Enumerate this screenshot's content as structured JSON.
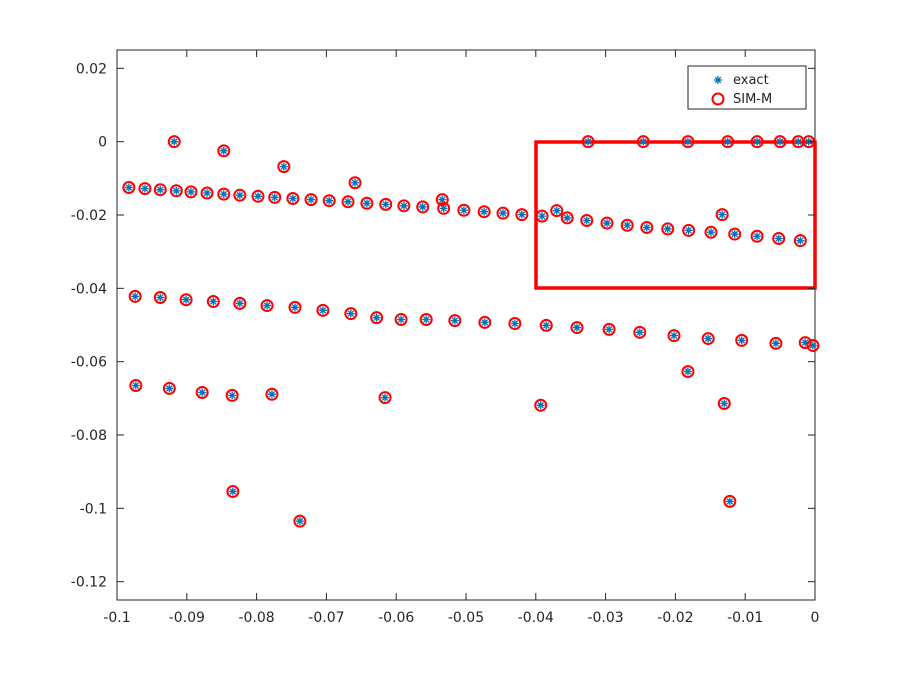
{
  "chart_data": {
    "type": "scatter",
    "x": [
      -0.0983,
      -0.096,
      -0.0938,
      -0.0915,
      -0.0894,
      -0.0871,
      -0.0847,
      -0.0824,
      -0.0798,
      -0.0774,
      -0.0748,
      -0.0722,
      -0.0696,
      -0.0669,
      -0.0642,
      -0.0615,
      -0.0589,
      -0.0562,
      -0.0532,
      -0.0503,
      -0.0474,
      -0.0447,
      -0.042,
      -0.0391,
      -0.0355,
      -0.0327,
      -0.0298,
      -0.0269,
      -0.0241,
      -0.0211,
      -0.0181,
      -0.0149,
      -0.0115,
      -0.0083,
      -0.0052,
      -0.0021,
      -0.0918,
      -0.0847,
      -0.0761,
      -0.0659,
      -0.0534,
      -0.037,
      -0.0133,
      -0.0325,
      -0.0246,
      -0.0182,
      -0.0125,
      -0.0083,
      -0.005,
      -0.0024,
      -0.0009,
      -0.0974,
      -0.0938,
      -0.0901,
      -0.0862,
      -0.0824,
      -0.0785,
      -0.0745,
      -0.0705,
      -0.0665,
      -0.0628,
      -0.0593,
      -0.0557,
      -0.0516,
      -0.0473,
      -0.043,
      -0.0385,
      -0.0341,
      -0.0295,
      -0.0251,
      -0.0202,
      -0.0153,
      -0.0105,
      -0.0056,
      -0.0014,
      -0.0003,
      -0.0182,
      -0.013,
      -0.0122,
      -0.0973,
      -0.0925,
      -0.0878,
      -0.0835,
      -0.0778,
      -0.0616,
      -0.0393,
      -0.0834,
      -0.0738
    ],
    "series": [
      {
        "name": "exact",
        "color": "#0072bd",
        "marker": "asterisk",
        "values": [
          -0.0125,
          -0.0128,
          -0.0131,
          -0.0134,
          -0.0137,
          -0.014,
          -0.0143,
          -0.0146,
          -0.0149,
          -0.0152,
          -0.0155,
          -0.0158,
          -0.0161,
          -0.0164,
          -0.0168,
          -0.0171,
          -0.0175,
          -0.0178,
          -0.0182,
          -0.0187,
          -0.0191,
          -0.0195,
          -0.0199,
          -0.0203,
          -0.0208,
          -0.0215,
          -0.0222,
          -0.0228,
          -0.0234,
          -0.0238,
          -0.0242,
          -0.0247,
          -0.0252,
          -0.0258,
          -0.0264,
          -0.027,
          0,
          -0.0025,
          -0.0068,
          -0.0112,
          -0.0158,
          -0.0188,
          -0.0199,
          0,
          0,
          0,
          0,
          0,
          0,
          0,
          0,
          -0.0422,
          -0.0425,
          -0.0431,
          -0.0436,
          -0.0441,
          -0.0447,
          -0.0452,
          -0.046,
          -0.0469,
          -0.048,
          -0.0485,
          -0.0485,
          -0.0488,
          -0.0493,
          -0.0496,
          -0.0501,
          -0.0507,
          -0.0512,
          -0.052,
          -0.0529,
          -0.0537,
          -0.0542,
          -0.055,
          -0.0548,
          -0.0556,
          -0.0627,
          -0.0714,
          -0.0981,
          -0.0665,
          -0.0673,
          -0.0684,
          -0.0692,
          -0.0689,
          -0.0698,
          -0.0719,
          -0.0954,
          -0.1035
        ]
      },
      {
        "name": "SIM-M",
        "color": "#ff0000",
        "marker": "circle",
        "values": [
          -0.0125,
          -0.0128,
          -0.0131,
          -0.0134,
          -0.0137,
          -0.014,
          -0.0143,
          -0.0146,
          -0.0149,
          -0.0152,
          -0.0155,
          -0.0158,
          -0.0161,
          -0.0164,
          -0.0168,
          -0.0171,
          -0.0175,
          -0.0178,
          -0.0182,
          -0.0187,
          -0.0191,
          -0.0195,
          -0.0199,
          -0.0203,
          -0.0208,
          -0.0215,
          -0.0222,
          -0.0228,
          -0.0234,
          -0.0238,
          -0.0242,
          -0.0247,
          -0.0252,
          -0.0258,
          -0.0264,
          -0.027,
          0,
          -0.0025,
          -0.0068,
          -0.0112,
          -0.0158,
          -0.0188,
          -0.0199,
          0,
          0,
          0,
          0,
          0,
          0,
          0,
          0,
          -0.0422,
          -0.0425,
          -0.0431,
          -0.0436,
          -0.0441,
          -0.0447,
          -0.0452,
          -0.046,
          -0.0469,
          -0.048,
          -0.0485,
          -0.0485,
          -0.0488,
          -0.0493,
          -0.0496,
          -0.0501,
          -0.0507,
          -0.0512,
          -0.052,
          -0.0529,
          -0.0537,
          -0.0542,
          -0.055,
          -0.0548,
          -0.0556,
          -0.0627,
          -0.0714,
          -0.0981,
          -0.0665,
          -0.0673,
          -0.0684,
          -0.0692,
          -0.0689,
          -0.0698,
          -0.0719,
          -0.0954,
          -0.1035
        ]
      }
    ],
    "xlim": [
      -0.1,
      0
    ],
    "xticks": [
      -0.1,
      -0.09,
      -0.08,
      -0.07,
      -0.06,
      -0.05,
      -0.04,
      -0.03,
      -0.02,
      -0.01,
      0
    ],
    "ylim": [
      -0.125,
      0.025
    ],
    "yticks": [
      -0.12,
      -0.1,
      -0.08,
      -0.06,
      -0.04,
      -0.02,
      0,
      0.02
    ],
    "grid": false,
    "legend": "top-right"
  }
}
